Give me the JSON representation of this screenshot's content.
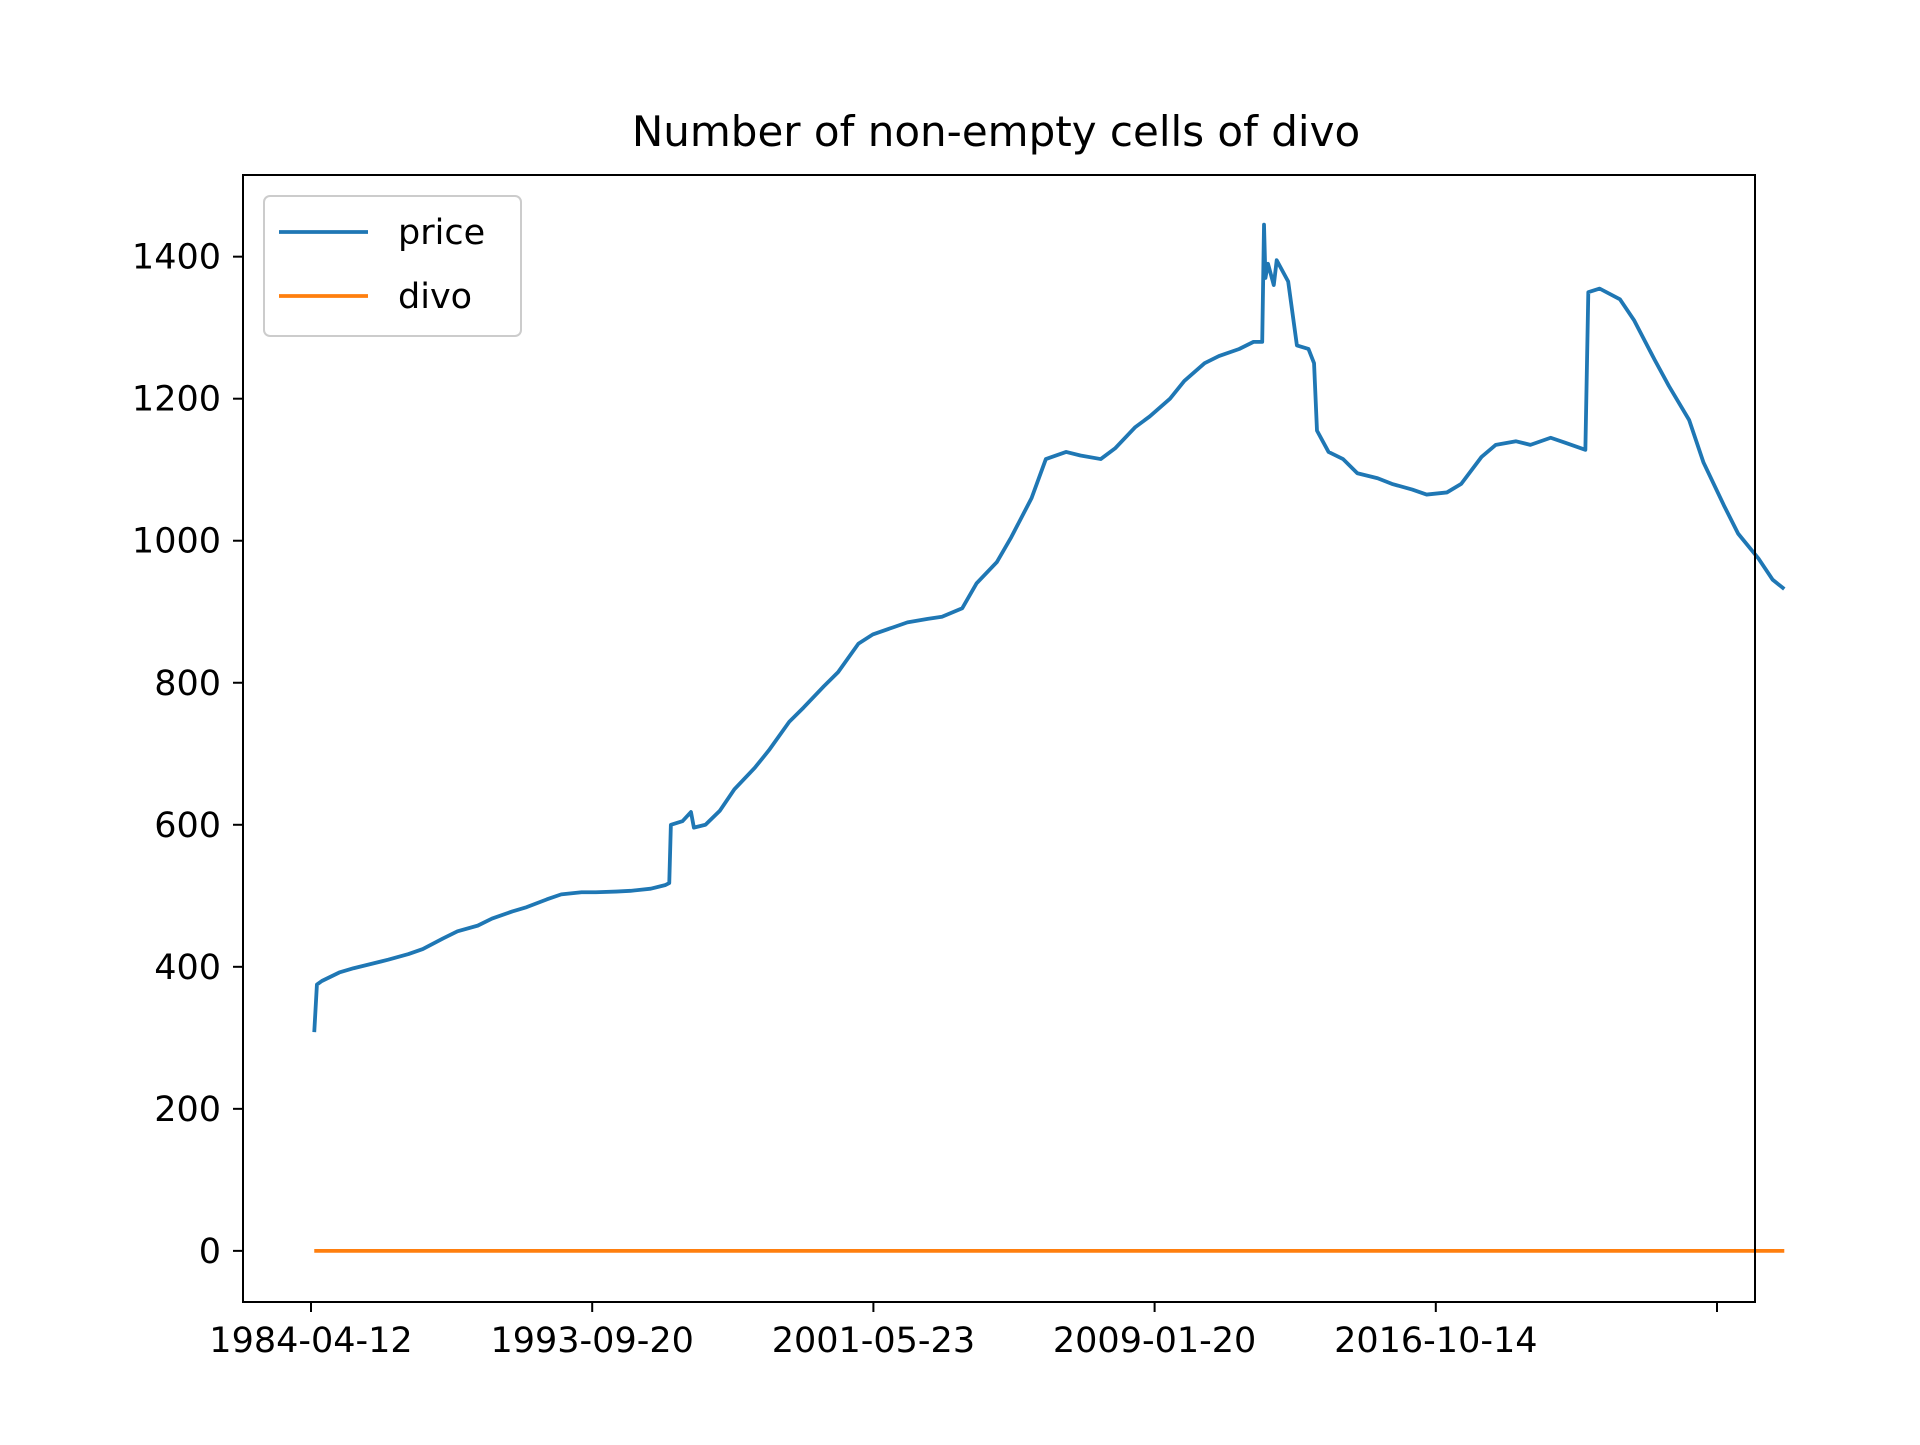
{
  "chart_data": {
    "type": "line",
    "title": "Number of non-empty cells of divo",
    "xlabel": "",
    "ylabel": "",
    "x_tick_labels": [
      "1984-04-12",
      "1993-09-20",
      "2001-05-23",
      "2009-01-20",
      "2016-10-14",
      ""
    ],
    "y_tick_labels": [
      "0",
      "200",
      "400",
      "600",
      "800",
      "1000",
      "1200",
      "1400"
    ],
    "y_ticks": [
      0,
      200,
      400,
      600,
      800,
      1000,
      1200,
      1400
    ],
    "ylim": [
      -72,
      1515
    ],
    "xlim": [
      "1982-03-22",
      "2025-11-26"
    ],
    "legend_position": "upper left",
    "grid": false,
    "colors": {
      "price": "#1f77b4",
      "divo": "#ff7f0e"
    },
    "series": [
      {
        "name": "price",
        "color": "#1f77b4",
        "points": [
          [
            "1984-04-12",
            308
          ],
          [
            "1984-05-10",
            375
          ],
          [
            "1984-07-01",
            380
          ],
          [
            "1984-10-01",
            386
          ],
          [
            "1985-01-01",
            392
          ],
          [
            "1985-06-01",
            398
          ],
          [
            "1986-01-01",
            405
          ],
          [
            "1986-06-01",
            410
          ],
          [
            "1987-01-01",
            418
          ],
          [
            "1987-06-01",
            425
          ],
          [
            "1988-01-01",
            440
          ],
          [
            "1988-06-01",
            450
          ],
          [
            "1989-01-01",
            458
          ],
          [
            "1989-06-01",
            468
          ],
          [
            "1990-01-01",
            478
          ],
          [
            "1990-06-01",
            484
          ],
          [
            "1991-01-01",
            495
          ],
          [
            "1991-06-01",
            502
          ],
          [
            "1992-01-01",
            505
          ],
          [
            "1992-06-01",
            505
          ],
          [
            "1993-01-01",
            506
          ],
          [
            "1993-06-01",
            507
          ],
          [
            "1994-01-01",
            510
          ],
          [
            "1994-06-01",
            515
          ],
          [
            "1994-07-15",
            518
          ],
          [
            "1994-08-01",
            600
          ],
          [
            "1994-12-01",
            605
          ],
          [
            "1995-03-01",
            618
          ],
          [
            "1995-04-01",
            596
          ],
          [
            "1995-08-01",
            600
          ],
          [
            "1996-01-01",
            620
          ],
          [
            "1996-06-01",
            650
          ],
          [
            "1997-01-01",
            680
          ],
          [
            "1997-06-01",
            705
          ],
          [
            "1998-01-01",
            745
          ],
          [
            "1998-06-01",
            765
          ],
          [
            "1999-01-01",
            795
          ],
          [
            "1999-06-01",
            815
          ],
          [
            "2000-01-01",
            855
          ],
          [
            "2000-06-01",
            868
          ],
          [
            "2001-01-01",
            878
          ],
          [
            "2001-06-01",
            885
          ],
          [
            "2002-01-01",
            890
          ],
          [
            "2002-06-01",
            893
          ],
          [
            "2003-01-01",
            905
          ],
          [
            "2003-06-01",
            940
          ],
          [
            "2004-01-01",
            970
          ],
          [
            "2004-06-01",
            1005
          ],
          [
            "2005-01-01",
            1060
          ],
          [
            "2005-06-01",
            1115
          ],
          [
            "2006-01-01",
            1125
          ],
          [
            "2006-06-01",
            1120
          ],
          [
            "2007-01-01",
            1115
          ],
          [
            "2007-06-01",
            1130
          ],
          [
            "2008-01-01",
            1160
          ],
          [
            "2008-06-01",
            1175
          ],
          [
            "2009-01-01",
            1200
          ],
          [
            "2009-06-01",
            1225
          ],
          [
            "2010-01-01",
            1250
          ],
          [
            "2010-06-01",
            1260
          ],
          [
            "2011-01-01",
            1270
          ],
          [
            "2011-06-01",
            1280
          ],
          [
            "2011-09-01",
            1280
          ],
          [
            "2011-09-20",
            1445
          ],
          [
            "2011-10-05",
            1370
          ],
          [
            "2011-11-01",
            1390
          ],
          [
            "2012-01-01",
            1360
          ],
          [
            "2012-02-01",
            1395
          ],
          [
            "2012-06-01",
            1365
          ],
          [
            "2012-09-01",
            1275
          ],
          [
            "2013-01-01",
            1270
          ],
          [
            "2013-03-01",
            1250
          ],
          [
            "2013-04-01",
            1155
          ],
          [
            "2013-08-01",
            1125
          ],
          [
            "2014-01-01",
            1115
          ],
          [
            "2014-06-01",
            1095
          ],
          [
            "2015-01-01",
            1088
          ],
          [
            "2015-06-01",
            1080
          ],
          [
            "2016-01-01",
            1072
          ],
          [
            "2016-06-01",
            1065
          ],
          [
            "2017-01-01",
            1068
          ],
          [
            "2017-06-01",
            1080
          ],
          [
            "2018-01-01",
            1118
          ],
          [
            "2018-06-01",
            1135
          ],
          [
            "2019-01-01",
            1140
          ],
          [
            "2019-06-01",
            1135
          ],
          [
            "2020-01-01",
            1145
          ],
          [
            "2020-06-01",
            1138
          ],
          [
            "2021-01-01",
            1128
          ],
          [
            "2021-02-01",
            1350
          ],
          [
            "2021-06-01",
            1355
          ],
          [
            "2022-01-01",
            1340
          ],
          [
            "2022-06-01",
            1310
          ],
          [
            "2023-01-01",
            1255
          ],
          [
            "2023-06-01",
            1218
          ],
          [
            "2024-01-01",
            1170
          ],
          [
            "2024-06-01",
            1110
          ],
          [
            "2025-01-01",
            1050
          ],
          [
            "2025-06-01",
            1010
          ],
          [
            "2026-01-01",
            975
          ],
          [
            "2026-06-01",
            945
          ],
          [
            "2026-10-01",
            932
          ]
        ]
      },
      {
        "name": "divo",
        "color": "#ff7f0e",
        "points": [
          [
            "1984-04-12",
            0
          ],
          [
            "2026-10-01",
            0
          ]
        ]
      }
    ]
  }
}
